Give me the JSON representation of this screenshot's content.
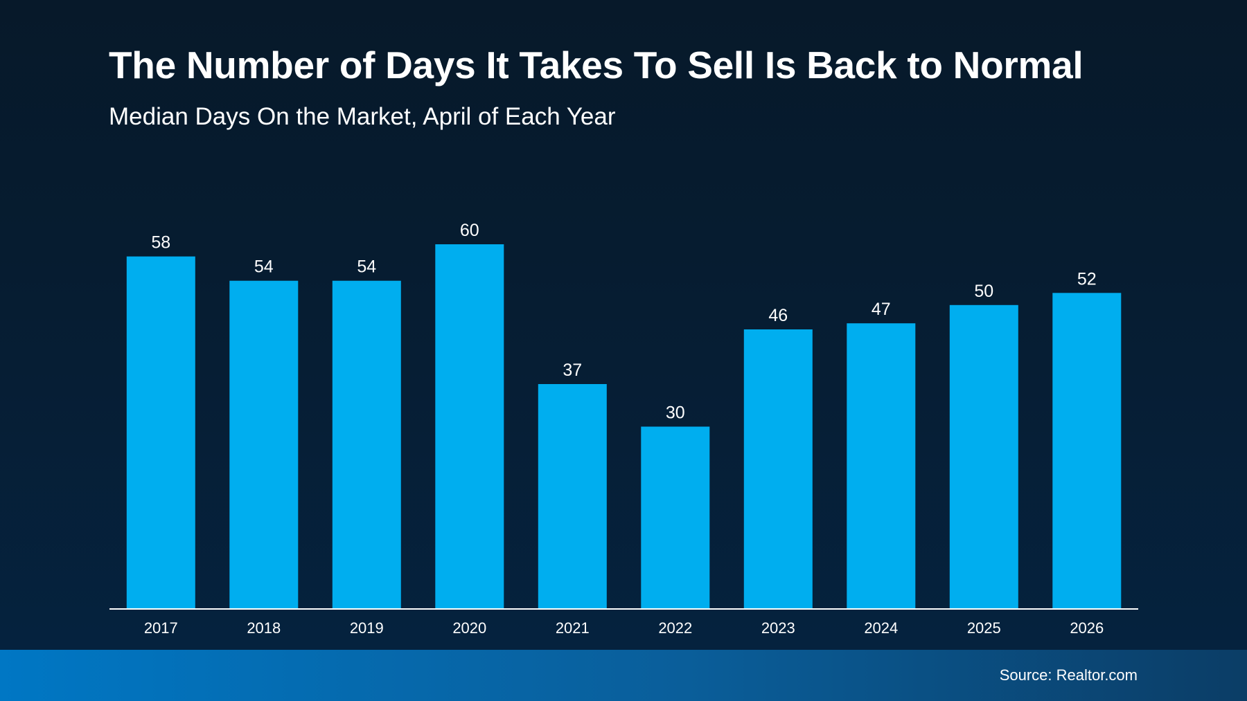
{
  "slide": {
    "title": "The Number of Days It Takes To Sell Is Back to Normal",
    "subtitle": "Median Days On the Market, April of Each Year",
    "source": "Source: Realtor.com"
  },
  "colors": {
    "bar": "#00aeef",
    "text": "#ffffff",
    "axis": "#ffffff"
  },
  "chart_data": {
    "type": "bar",
    "title": "The Number of Days It Takes To Sell Is Back to Normal",
    "subtitle": "Median Days On the Market, April of Each Year",
    "categories": [
      "2017",
      "2018",
      "2019",
      "2020",
      "2021",
      "2022",
      "2023",
      "2024",
      "2025",
      "2026"
    ],
    "values": [
      58,
      54,
      54,
      60,
      37,
      30,
      46,
      47,
      50,
      52
    ],
    "xlabel": "",
    "ylabel": "",
    "ylim": [
      0,
      60
    ],
    "grid": false,
    "data_labels": true,
    "legend": "none"
  }
}
